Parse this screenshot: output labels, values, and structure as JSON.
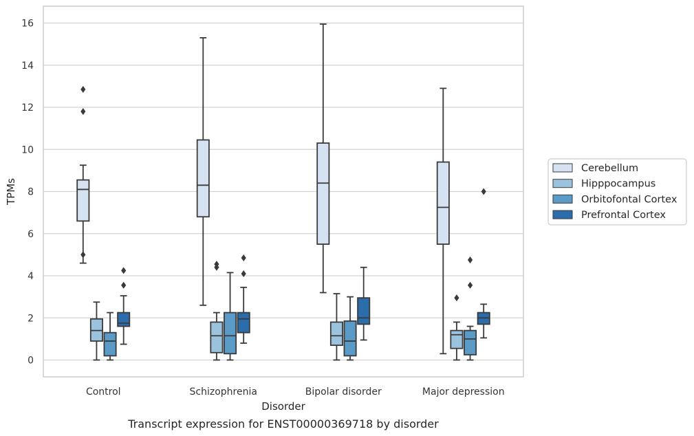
{
  "caption": "Transcript expression for ENST00000369718 by disorder",
  "chart_data": {
    "type": "box",
    "title": "",
    "xlabel": "Disorder",
    "ylabel": "TPMs",
    "ylim": [
      -0.8,
      16.8
    ],
    "yticks": [
      0,
      2,
      4,
      6,
      8,
      10,
      12,
      14,
      16
    ],
    "grid": true,
    "legend_position": "right",
    "categories": [
      "Control",
      "Schizophrenia",
      "Bipolar disorder",
      "Major depression"
    ],
    "series": [
      {
        "name": "Cerebellum",
        "color": "#d4e2f1",
        "boxes": [
          {
            "whislo": 4.6,
            "q1": 6.6,
            "med": 8.1,
            "q3": 8.55,
            "whishi": 9.25,
            "fliers": [
              12.85,
              11.8,
              5.0
            ]
          },
          {
            "whislo": 2.6,
            "q1": 6.8,
            "med": 8.3,
            "q3": 10.45,
            "whishi": 15.3,
            "fliers": []
          },
          {
            "whislo": 3.2,
            "q1": 5.5,
            "med": 8.4,
            "q3": 10.3,
            "whishi": 15.95,
            "fliers": []
          },
          {
            "whislo": 0.3,
            "q1": 5.5,
            "med": 7.25,
            "q3": 9.4,
            "whishi": 12.9,
            "fliers": []
          }
        ]
      },
      {
        "name": "Hipppocampus",
        "color": "#9bc3dd",
        "boxes": [
          {
            "whislo": 0.0,
            "q1": 0.9,
            "med": 1.4,
            "q3": 1.95,
            "whishi": 2.75,
            "fliers": []
          },
          {
            "whislo": 0.0,
            "q1": 0.35,
            "med": 1.15,
            "q3": 1.8,
            "whishi": 2.25,
            "fliers": [
              4.55,
              4.4
            ]
          },
          {
            "whislo": 0.0,
            "q1": 0.7,
            "med": 1.15,
            "q3": 1.8,
            "whishi": 3.15,
            "fliers": []
          },
          {
            "whislo": 0.0,
            "q1": 0.55,
            "med": 1.2,
            "q3": 1.4,
            "whishi": 1.8,
            "fliers": [
              2.95
            ]
          }
        ]
      },
      {
        "name": "Orbitofontal Cortex",
        "color": "#5a9ac6",
        "boxes": [
          {
            "whislo": 0.0,
            "q1": 0.2,
            "med": 0.9,
            "q3": 1.3,
            "whishi": 2.25,
            "fliers": []
          },
          {
            "whislo": 0.0,
            "q1": 0.3,
            "med": 1.15,
            "q3": 2.25,
            "whishi": 4.15,
            "fliers": []
          },
          {
            "whislo": 0.0,
            "q1": 0.2,
            "med": 0.9,
            "q3": 1.85,
            "whishi": 3.0,
            "fliers": []
          },
          {
            "whislo": 0.0,
            "q1": 0.25,
            "med": 1.0,
            "q3": 1.4,
            "whishi": 1.6,
            "fliers": [
              4.75,
              3.55
            ]
          }
        ]
      },
      {
        "name": "Prefrontal Cortex",
        "color": "#2b6cab",
        "boxes": [
          {
            "whislo": 0.75,
            "q1": 1.6,
            "med": 1.75,
            "q3": 2.25,
            "whishi": 3.05,
            "fliers": [
              4.25,
              3.55
            ]
          },
          {
            "whislo": 0.8,
            "q1": 1.3,
            "med": 1.95,
            "q3": 2.25,
            "whishi": 3.45,
            "fliers": [
              4.85,
              4.1
            ]
          },
          {
            "whislo": 0.95,
            "q1": 1.7,
            "med": 2.0,
            "q3": 2.95,
            "whishi": 4.4,
            "fliers": []
          },
          {
            "whislo": 1.05,
            "q1": 1.7,
            "med": 2.0,
            "q3": 2.25,
            "whishi": 2.65,
            "fliers": [
              8.0
            ]
          }
        ]
      }
    ]
  }
}
